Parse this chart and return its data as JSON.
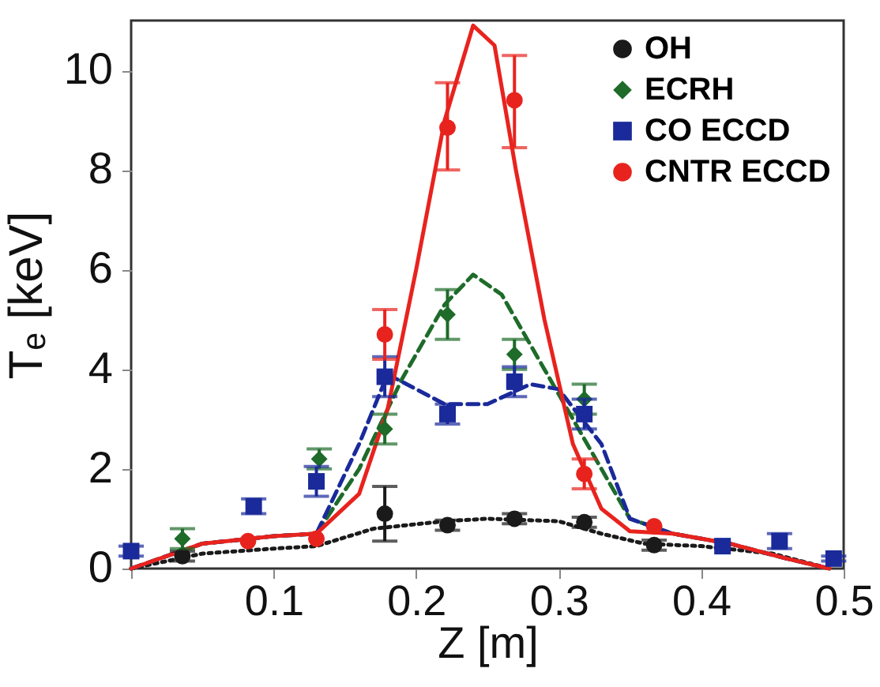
{
  "chart_data": {
    "type": "scatter",
    "xlabel": "Z [m]",
    "ylabel": "Tₑ [keV]",
    "xlim": [
      0,
      0.5
    ],
    "ylim": [
      0,
      11
    ],
    "xticks": [
      {
        "value": 0,
        "label": null
      },
      0.1,
      0.2,
      0.3,
      0.4,
      0.5
    ],
    "yticks": [
      0,
      2,
      4,
      6,
      8,
      10
    ],
    "legend": "top right",
    "grid": false,
    "series": [
      {
        "name": "OH",
        "color": "#1a1a1a",
        "marker": "circle",
        "x": [
          0.036,
          0.082,
          0.132,
          0.178,
          0.222,
          0.269,
          0.318,
          0.367
        ],
        "values": [
          0.25,
          null,
          null,
          1.1,
          0.87,
          1.0,
          0.93,
          0.47
        ],
        "errors": [
          0.1,
          null,
          null,
          0.55,
          0.1,
          0.1,
          0.1,
          0.1
        ]
      },
      {
        "name": "ECRH",
        "color": "#1e6b2a",
        "marker": "diamond",
        "x": [
          0.036,
          0.082,
          0.132,
          0.178,
          0.222,
          0.269,
          0.318
        ],
        "values": [
          0.6,
          null,
          2.2,
          2.8,
          5.1,
          4.3,
          3.4
        ],
        "errors": [
          0.2,
          null,
          0.2,
          0.3,
          0.5,
          0.3,
          0.3
        ]
      },
      {
        "name": "CO ECCD",
        "color": "#1a2a9a",
        "marker": "square",
        "x": [
          0.0,
          0.086,
          0.13,
          0.178,
          0.222,
          0.269,
          0.318,
          0.367,
          0.415,
          0.455,
          0.493
        ],
        "values": [
          0.35,
          1.25,
          1.75,
          3.85,
          3.1,
          3.75,
          3.1,
          null,
          0.45,
          0.55,
          0.2
        ],
        "errors": [
          0.1,
          0.15,
          0.3,
          0.4,
          0.2,
          0.3,
          0.3,
          null,
          null,
          0.15,
          0.05
        ]
      },
      {
        "name": "CNTR ECCD",
        "color": "#e8231e",
        "marker": "circle",
        "x": [
          0.082,
          0.13,
          0.178,
          0.222,
          0.269,
          0.318,
          0.367
        ],
        "values": [
          0.55,
          0.6,
          4.7,
          8.85,
          9.4,
          1.9,
          0.85
        ],
        "errors": [
          null,
          null,
          0.5,
          [
            8.0,
            9.75
          ],
          [
            8.45,
            10.3
          ],
          0.3,
          null
        ]
      },
      {
        "type": "line",
        "color": "#1a1a1a",
        "line_style": "dotted",
        "x": [
          0,
          0.05,
          0.1,
          0.13,
          0.17,
          0.22,
          0.25,
          0.3,
          0.33,
          0.36,
          0.4,
          0.45,
          0.49
        ],
        "values": [
          0,
          0.3,
          0.4,
          0.45,
          0.8,
          0.95,
          1.0,
          0.95,
          0.7,
          0.5,
          0.45,
          0.3,
          0
        ]
      },
      {
        "type": "line",
        "color": "#1e6b2a",
        "line_style": "dashed",
        "x": [
          0,
          0.05,
          0.1,
          0.13,
          0.16,
          0.19,
          0.22,
          0.24,
          0.26,
          0.29,
          0.32,
          0.35,
          0.38,
          0.42,
          0.46,
          0.49
        ],
        "values": [
          0,
          0.5,
          0.65,
          0.7,
          2,
          3.8,
          5.3,
          5.9,
          5.5,
          4,
          2.5,
          1,
          0.7,
          0.5,
          0.2,
          0
        ]
      },
      {
        "type": "line",
        "color": "#1a2a9a",
        "line_style": "dashed",
        "x": [
          0,
          0.05,
          0.1,
          0.13,
          0.16,
          0.18,
          0.22,
          0.25,
          0.28,
          0.3,
          0.33,
          0.35,
          0.38,
          0.42,
          0.46,
          0.49
        ],
        "values": [
          0,
          0.5,
          0.65,
          0.7,
          2.5,
          3.9,
          3.3,
          3.3,
          3.7,
          3.6,
          2.5,
          1,
          0.7,
          0.5,
          0.2,
          0
        ]
      },
      {
        "type": "line",
        "color": "#e8231e",
        "line_style": "solid",
        "x": [
          0,
          0.05,
          0.1,
          0.13,
          0.16,
          0.18,
          0.2,
          0.22,
          0.24,
          0.255,
          0.27,
          0.29,
          0.31,
          0.33,
          0.35,
          0.38,
          0.42,
          0.46,
          0.49
        ],
        "values": [
          0,
          0.5,
          0.65,
          0.7,
          1.5,
          3.2,
          6,
          9,
          10.9,
          10.5,
          8,
          5,
          2.5,
          1.2,
          0.75,
          0.7,
          0.5,
          0.2,
          0
        ]
      }
    ]
  }
}
